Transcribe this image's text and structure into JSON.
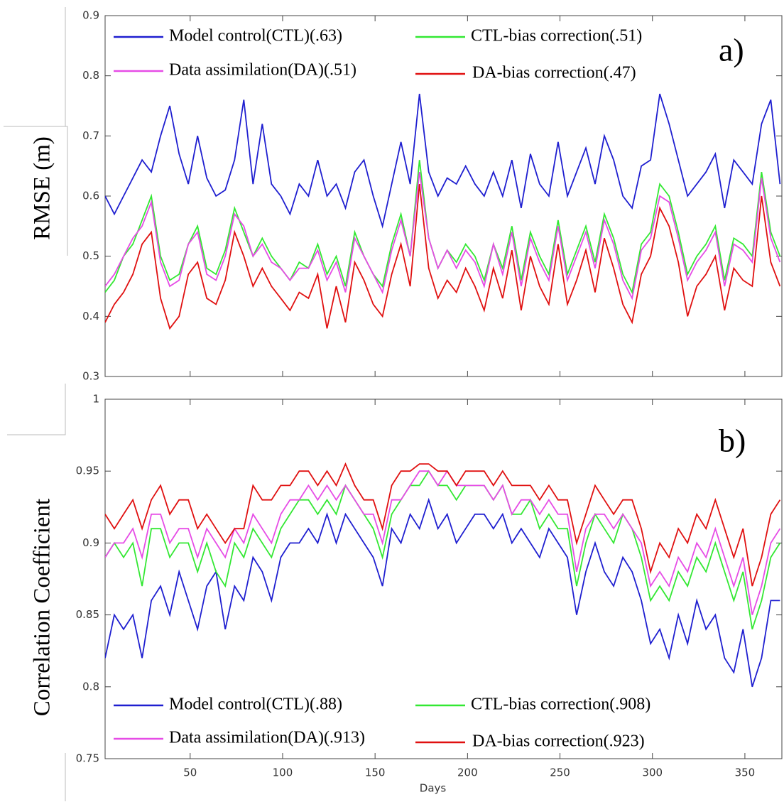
{
  "chart_data": [
    {
      "type": "line",
      "ylabel": "RMSE (m)",
      "panel_label": "a)",
      "x": [
        4,
        9,
        14,
        19,
        24,
        29,
        34,
        39,
        44,
        49,
        54,
        59,
        64,
        69,
        74,
        79,
        84,
        89,
        94,
        99,
        104,
        109,
        114,
        119,
        124,
        129,
        134,
        139,
        144,
        149,
        154,
        159,
        164,
        169,
        174,
        179,
        184,
        189,
        194,
        199,
        204,
        209,
        214,
        219,
        224,
        229,
        234,
        239,
        244,
        249,
        254,
        259,
        264,
        269,
        274,
        279,
        284,
        289,
        294,
        299,
        304,
        309,
        314,
        319,
        324,
        329,
        334,
        339,
        344,
        349,
        354,
        359,
        364,
        369
      ],
      "xlim": [
        4,
        370
      ],
      "xticks": [
        50,
        100,
        150,
        200,
        250,
        300,
        350
      ],
      "ylim": [
        0.3,
        0.9
      ],
      "yticks": [
        0.3,
        0.4,
        0.5,
        0.6,
        0.7,
        0.8,
        0.9
      ],
      "series": [
        {
          "name": "Model control(CTL)(.63)",
          "color": "#1f1fd0",
          "values": [
            0.6,
            0.57,
            0.6,
            0.63,
            0.66,
            0.64,
            0.7,
            0.75,
            0.67,
            0.62,
            0.7,
            0.63,
            0.6,
            0.61,
            0.66,
            0.76,
            0.62,
            0.72,
            0.62,
            0.6,
            0.57,
            0.62,
            0.6,
            0.66,
            0.6,
            0.62,
            0.58,
            0.64,
            0.66,
            0.6,
            0.55,
            0.62,
            0.69,
            0.62,
            0.77,
            0.64,
            0.6,
            0.63,
            0.62,
            0.65,
            0.62,
            0.6,
            0.64,
            0.6,
            0.66,
            0.58,
            0.67,
            0.62,
            0.6,
            0.69,
            0.6,
            0.64,
            0.68,
            0.62,
            0.7,
            0.66,
            0.6,
            0.58,
            0.65,
            0.66,
            0.77,
            0.72,
            0.66,
            0.6,
            0.62,
            0.64,
            0.67,
            0.58,
            0.66,
            0.64,
            0.62,
            0.72,
            0.76,
            0.62
          ]
        },
        {
          "name": "CTL-bias correction(.51)",
          "color": "#33e833",
          "values": [
            0.44,
            0.46,
            0.5,
            0.52,
            0.56,
            0.6,
            0.5,
            0.46,
            0.47,
            0.52,
            0.55,
            0.48,
            0.47,
            0.51,
            0.58,
            0.54,
            0.5,
            0.53,
            0.5,
            0.48,
            0.46,
            0.49,
            0.48,
            0.52,
            0.47,
            0.5,
            0.45,
            0.54,
            0.5,
            0.47,
            0.45,
            0.52,
            0.57,
            0.5,
            0.66,
            0.53,
            0.48,
            0.51,
            0.49,
            0.52,
            0.5,
            0.46,
            0.52,
            0.48,
            0.55,
            0.46,
            0.54,
            0.5,
            0.47,
            0.56,
            0.47,
            0.51,
            0.55,
            0.49,
            0.57,
            0.53,
            0.47,
            0.44,
            0.52,
            0.54,
            0.62,
            0.6,
            0.54,
            0.47,
            0.5,
            0.52,
            0.55,
            0.46,
            0.53,
            0.52,
            0.5,
            0.64,
            0.54,
            0.5
          ]
        },
        {
          "name": "Data assimilation(DA)(.51)",
          "color": "#e64ce6",
          "values": [
            0.45,
            0.47,
            0.5,
            0.53,
            0.55,
            0.59,
            0.49,
            0.45,
            0.46,
            0.52,
            0.54,
            0.47,
            0.46,
            0.5,
            0.57,
            0.55,
            0.5,
            0.52,
            0.49,
            0.48,
            0.46,
            0.48,
            0.48,
            0.51,
            0.46,
            0.49,
            0.44,
            0.53,
            0.5,
            0.47,
            0.44,
            0.51,
            0.56,
            0.5,
            0.64,
            0.53,
            0.48,
            0.51,
            0.48,
            0.51,
            0.49,
            0.45,
            0.52,
            0.47,
            0.54,
            0.45,
            0.53,
            0.49,
            0.46,
            0.55,
            0.46,
            0.5,
            0.54,
            0.48,
            0.56,
            0.52,
            0.46,
            0.43,
            0.51,
            0.53,
            0.6,
            0.59,
            0.53,
            0.46,
            0.49,
            0.51,
            0.54,
            0.45,
            0.52,
            0.51,
            0.49,
            0.63,
            0.53,
            0.49
          ]
        },
        {
          "name": "DA-bias correction(.47)",
          "color": "#e01010",
          "values": [
            0.39,
            0.42,
            0.44,
            0.47,
            0.52,
            0.54,
            0.43,
            0.38,
            0.4,
            0.47,
            0.49,
            0.43,
            0.42,
            0.46,
            0.54,
            0.5,
            0.45,
            0.48,
            0.45,
            0.43,
            0.41,
            0.44,
            0.43,
            0.47,
            0.38,
            0.45,
            0.39,
            0.49,
            0.46,
            0.42,
            0.4,
            0.47,
            0.52,
            0.45,
            0.62,
            0.48,
            0.43,
            0.46,
            0.44,
            0.48,
            0.45,
            0.41,
            0.48,
            0.43,
            0.51,
            0.41,
            0.5,
            0.45,
            0.42,
            0.52,
            0.42,
            0.46,
            0.51,
            0.44,
            0.53,
            0.48,
            0.42,
            0.39,
            0.47,
            0.5,
            0.58,
            0.55,
            0.49,
            0.4,
            0.45,
            0.47,
            0.5,
            0.41,
            0.48,
            0.46,
            0.45,
            0.6,
            0.49,
            0.45
          ]
        }
      ]
    },
    {
      "type": "line",
      "ylabel": "Correlation Coefficient",
      "panel_label": "b)",
      "xlabel": "Days",
      "x": [
        4,
        9,
        14,
        19,
        24,
        29,
        34,
        39,
        44,
        49,
        54,
        59,
        64,
        69,
        74,
        79,
        84,
        89,
        94,
        99,
        104,
        109,
        114,
        119,
        124,
        129,
        134,
        139,
        144,
        149,
        154,
        159,
        164,
        169,
        174,
        179,
        184,
        189,
        194,
        199,
        204,
        209,
        214,
        219,
        224,
        229,
        234,
        239,
        244,
        249,
        254,
        259,
        264,
        269,
        274,
        279,
        284,
        289,
        294,
        299,
        304,
        309,
        314,
        319,
        324,
        329,
        334,
        339,
        344,
        349,
        354,
        359,
        364,
        369
      ],
      "xlim": [
        4,
        370
      ],
      "xticks": [
        50,
        100,
        150,
        200,
        250,
        300,
        350
      ],
      "ylim": [
        0.75,
        1
      ],
      "yticks": [
        0.75,
        0.8,
        0.85,
        0.9,
        0.95,
        1
      ],
      "series": [
        {
          "name": "Model control(CTL)(.88)",
          "color": "#1f1fd0",
          "values": [
            0.82,
            0.85,
            0.84,
            0.85,
            0.82,
            0.86,
            0.87,
            0.85,
            0.88,
            0.86,
            0.84,
            0.87,
            0.88,
            0.84,
            0.87,
            0.86,
            0.89,
            0.88,
            0.86,
            0.89,
            0.9,
            0.9,
            0.91,
            0.9,
            0.92,
            0.9,
            0.92,
            0.91,
            0.9,
            0.89,
            0.87,
            0.91,
            0.9,
            0.92,
            0.91,
            0.93,
            0.91,
            0.92,
            0.9,
            0.91,
            0.92,
            0.92,
            0.91,
            0.92,
            0.9,
            0.91,
            0.9,
            0.89,
            0.91,
            0.9,
            0.89,
            0.85,
            0.88,
            0.9,
            0.88,
            0.87,
            0.89,
            0.88,
            0.86,
            0.83,
            0.84,
            0.82,
            0.85,
            0.83,
            0.86,
            0.84,
            0.85,
            0.82,
            0.81,
            0.84,
            0.8,
            0.82,
            0.86,
            0.86
          ]
        },
        {
          "name": "CTL-bias correction(.908)",
          "color": "#33e833",
          "values": [
            0.89,
            0.9,
            0.89,
            0.9,
            0.87,
            0.91,
            0.91,
            0.89,
            0.9,
            0.9,
            0.88,
            0.9,
            0.88,
            0.87,
            0.9,
            0.89,
            0.91,
            0.9,
            0.89,
            0.91,
            0.92,
            0.93,
            0.93,
            0.92,
            0.93,
            0.92,
            0.94,
            0.93,
            0.92,
            0.91,
            0.89,
            0.92,
            0.93,
            0.94,
            0.94,
            0.95,
            0.94,
            0.94,
            0.93,
            0.94,
            0.94,
            0.94,
            0.93,
            0.94,
            0.92,
            0.92,
            0.93,
            0.91,
            0.92,
            0.91,
            0.91,
            0.87,
            0.9,
            0.92,
            0.91,
            0.9,
            0.92,
            0.91,
            0.89,
            0.86,
            0.87,
            0.86,
            0.88,
            0.87,
            0.89,
            0.88,
            0.9,
            0.88,
            0.86,
            0.88,
            0.84,
            0.86,
            0.89,
            0.9
          ]
        },
        {
          "name": "Data assimilation(DA)(.913)",
          "color": "#e64ce6",
          "values": [
            0.89,
            0.9,
            0.9,
            0.91,
            0.89,
            0.92,
            0.92,
            0.9,
            0.91,
            0.91,
            0.89,
            0.91,
            0.9,
            0.89,
            0.91,
            0.9,
            0.92,
            0.91,
            0.9,
            0.92,
            0.93,
            0.93,
            0.94,
            0.93,
            0.94,
            0.93,
            0.94,
            0.93,
            0.92,
            0.92,
            0.9,
            0.93,
            0.93,
            0.94,
            0.95,
            0.95,
            0.94,
            0.95,
            0.94,
            0.94,
            0.94,
            0.94,
            0.93,
            0.94,
            0.92,
            0.93,
            0.93,
            0.92,
            0.93,
            0.92,
            0.92,
            0.88,
            0.91,
            0.92,
            0.92,
            0.91,
            0.92,
            0.91,
            0.9,
            0.87,
            0.88,
            0.87,
            0.89,
            0.88,
            0.9,
            0.89,
            0.91,
            0.89,
            0.87,
            0.89,
            0.85,
            0.87,
            0.9,
            0.91
          ]
        },
        {
          "name": "DA-bias correction(.923)",
          "color": "#e01010",
          "values": [
            0.92,
            0.91,
            0.92,
            0.93,
            0.91,
            0.93,
            0.94,
            0.92,
            0.93,
            0.93,
            0.91,
            0.92,
            0.91,
            0.9,
            0.91,
            0.91,
            0.94,
            0.93,
            0.93,
            0.94,
            0.94,
            0.95,
            0.95,
            0.94,
            0.95,
            0.94,
            0.955,
            0.94,
            0.93,
            0.93,
            0.91,
            0.94,
            0.95,
            0.95,
            0.955,
            0.955,
            0.95,
            0.95,
            0.94,
            0.95,
            0.95,
            0.95,
            0.94,
            0.95,
            0.94,
            0.94,
            0.94,
            0.93,
            0.94,
            0.93,
            0.93,
            0.9,
            0.92,
            0.94,
            0.93,
            0.92,
            0.93,
            0.93,
            0.91,
            0.88,
            0.9,
            0.89,
            0.91,
            0.9,
            0.92,
            0.91,
            0.93,
            0.91,
            0.89,
            0.91,
            0.87,
            0.89,
            0.92,
            0.93
          ]
        }
      ]
    }
  ]
}
